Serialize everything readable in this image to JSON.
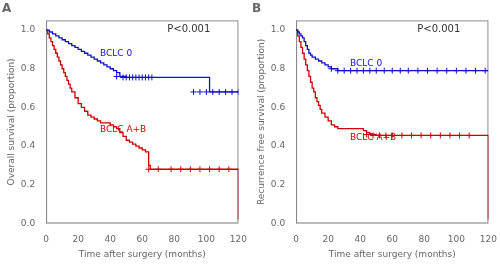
{
  "chart_data": [
    {
      "type": "line",
      "title": "A",
      "xlabel": "Time after surgery (months)",
      "ylabel": "Overall survival (proportion)",
      "annotations": [
        {
          "text": "P<0.001"
        }
      ],
      "xlim": [
        0,
        120
      ],
      "ylim": [
        0,
        1.05
      ],
      "xticks": [
        0,
        20,
        40,
        60,
        80,
        100,
        120
      ],
      "yticks": [
        {
          "value": 0.0,
          "label": "0.0"
        },
        0.2,
        0.4,
        0.6,
        0.8,
        {
          "value": 1.0,
          "label": "1.0"
        }
      ],
      "grid": false,
      "line_style": "step",
      "series": [
        {
          "name": "BCLC 0",
          "color": "#1010CC",
          "marker": "+",
          "x": [
            0,
            2,
            4,
            6,
            8,
            10,
            12,
            14,
            16,
            18,
            20,
            22,
            24,
            26,
            28,
            30,
            32,
            34,
            36,
            38,
            40,
            42,
            44,
            46,
            48,
            50,
            52,
            54,
            56,
            58,
            60,
            62,
            64,
            66,
            68,
            70,
            72,
            74,
            76,
            78,
            80,
            82,
            84,
            86,
            88,
            90,
            92,
            94,
            96,
            98,
            100,
            102,
            104,
            106,
            108,
            110,
            112,
            114,
            116,
            118,
            120
          ],
          "values": [
            1.0,
            0.99,
            0.98,
            0.97,
            0.96,
            0.95,
            0.94,
            0.93,
            0.92,
            0.91,
            0.9,
            0.89,
            0.88,
            0.87,
            0.86,
            0.85,
            0.84,
            0.83,
            0.82,
            0.81,
            0.8,
            0.79,
            0.78,
            0.76,
            0.76,
            0.755,
            0.755,
            0.755,
            0.755,
            0.755,
            0.755,
            0.755,
            0.755,
            0.755,
            0.755,
            0.755,
            0.755,
            0.755,
            0.755,
            0.755,
            0.755,
            0.755,
            0.755,
            0.755,
            0.755,
            0.755,
            0.755,
            0.755,
            0.755,
            0.755,
            0.755,
            0.68,
            0.68,
            0.68,
            0.68,
            0.68,
            0.68,
            0.68,
            0.68,
            0.68,
            0.68
          ],
          "censor_x": [
            44,
            48,
            50,
            52,
            54,
            56,
            58,
            60,
            62,
            64,
            66,
            92,
            96,
            100,
            104,
            108,
            112,
            116,
            120
          ],
          "censor_y": [
            0.76,
            0.755,
            0.755,
            0.755,
            0.755,
            0.755,
            0.755,
            0.755,
            0.755,
            0.755,
            0.755,
            0.68,
            0.68,
            0.68,
            0.68,
            0.68,
            0.68,
            0.68,
            0.68
          ]
        },
        {
          "name": "BCLC A+B",
          "color": "#CC0000",
          "marker": "+",
          "x": [
            0,
            1,
            2,
            3,
            4,
            5,
            6,
            7,
            8,
            9,
            10,
            11,
            12,
            13,
            14,
            15,
            16,
            18,
            20,
            22,
            24,
            26,
            28,
            30,
            32,
            34,
            36,
            38,
            40,
            42,
            44,
            46,
            48,
            50,
            52,
            54,
            56,
            58,
            60,
            62,
            64,
            65,
            70,
            75,
            80,
            85,
            90,
            95,
            100,
            105,
            110,
            115,
            118,
            120
          ],
          "values": [
            1.0,
            0.98,
            0.96,
            0.94,
            0.92,
            0.9,
            0.88,
            0.86,
            0.84,
            0.82,
            0.8,
            0.78,
            0.76,
            0.74,
            0.72,
            0.7,
            0.68,
            0.65,
            0.62,
            0.6,
            0.58,
            0.56,
            0.55,
            0.54,
            0.53,
            0.52,
            0.52,
            0.52,
            0.51,
            0.5,
            0.49,
            0.47,
            0.45,
            0.43,
            0.42,
            0.41,
            0.4,
            0.39,
            0.38,
            0.37,
            0.3,
            0.28,
            0.28,
            0.28,
            0.28,
            0.28,
            0.28,
            0.28,
            0.28,
            0.28,
            0.28,
            0.28,
            0.28,
            0.02
          ],
          "censor_x": [
            64,
            70,
            78,
            84,
            90,
            96,
            102,
            108,
            114
          ],
          "censor_y": [
            0.28,
            0.28,
            0.28,
            0.28,
            0.28,
            0.28,
            0.28,
            0.28,
            0.28
          ]
        }
      ]
    },
    {
      "type": "line",
      "title": "B",
      "xlabel": "Time after surgery (months)",
      "ylabel": "Recurrence free survival (proportion)",
      "annotations": [
        {
          "text": "P<0.001"
        }
      ],
      "xlim": [
        0,
        120
      ],
      "ylim": [
        0,
        1.05
      ],
      "xticks": [
        0,
        20,
        40,
        60,
        80,
        100,
        120
      ],
      "yticks": [
        {
          "value": 0.0,
          "label": "0.0"
        },
        0.2,
        0.4,
        0.6,
        0.8,
        {
          "value": 1.0,
          "label": "1.0"
        }
      ],
      "grid": false,
      "line_style": "step",
      "series": [
        {
          "name": "BCLC 0",
          "color": "#1010CC",
          "marker": "+",
          "x": [
            0,
            1,
            2,
            3,
            4,
            5,
            6,
            7,
            8,
            9,
            10,
            12,
            14,
            16,
            18,
            20,
            22,
            24,
            26,
            28,
            30,
            32,
            34,
            36,
            38,
            40,
            42,
            44,
            46,
            50,
            55,
            60,
            65,
            70,
            75,
            80,
            85,
            90,
            95,
            100,
            105,
            110,
            115,
            120
          ],
          "values": [
            1.0,
            0.99,
            0.98,
            0.97,
            0.96,
            0.94,
            0.92,
            0.9,
            0.88,
            0.87,
            0.86,
            0.85,
            0.84,
            0.83,
            0.82,
            0.81,
            0.8,
            0.8,
            0.79,
            0.79,
            0.79,
            0.79,
            0.79,
            0.79,
            0.79,
            0.79,
            0.79,
            0.79,
            0.79,
            0.79,
            0.79,
            0.79,
            0.79,
            0.79,
            0.79,
            0.79,
            0.79,
            0.79,
            0.79,
            0.79,
            0.79,
            0.79,
            0.79,
            0.79
          ],
          "censor_x": [
            22,
            26,
            30,
            34,
            38,
            42,
            46,
            50,
            55,
            60,
            65,
            70,
            76,
            82,
            88,
            94,
            100,
            106,
            112,
            118
          ],
          "censor_y": [
            0.8,
            0.79,
            0.79,
            0.79,
            0.79,
            0.79,
            0.79,
            0.79,
            0.79,
            0.79,
            0.79,
            0.79,
            0.79,
            0.79,
            0.79,
            0.79,
            0.79,
            0.79,
            0.79,
            0.79
          ]
        },
        {
          "name": "BCLC A+B",
          "color": "#CC0000",
          "marker": "+",
          "x": [
            0,
            1,
            2,
            3,
            4,
            5,
            6,
            7,
            8,
            9,
            10,
            11,
            12,
            13,
            14,
            15,
            16,
            18,
            20,
            22,
            24,
            26,
            28,
            30,
            32,
            34,
            36,
            38,
            40,
            42,
            44,
            46,
            50,
            55,
            60,
            65,
            70,
            75,
            80,
            85,
            90,
            95,
            100,
            105,
            110,
            113,
            116,
            120
          ],
          "values": [
            1.0,
            0.97,
            0.94,
            0.91,
            0.88,
            0.85,
            0.82,
            0.79,
            0.76,
            0.73,
            0.7,
            0.68,
            0.65,
            0.63,
            0.61,
            0.59,
            0.57,
            0.55,
            0.53,
            0.51,
            0.5,
            0.49,
            0.49,
            0.49,
            0.49,
            0.49,
            0.49,
            0.49,
            0.49,
            0.48,
            0.47,
            0.46,
            0.455,
            0.455,
            0.455,
            0.455,
            0.455,
            0.455,
            0.455,
            0.455,
            0.455,
            0.455,
            0.455,
            0.455,
            0.455,
            0.455,
            0.455,
            0.02
          ],
          "censor_x": [
            44,
            48,
            52,
            56,
            60,
            66,
            72,
            78,
            84,
            90,
            96,
            102,
            108
          ],
          "censor_y": [
            0.46,
            0.455,
            0.455,
            0.455,
            0.455,
            0.455,
            0.455,
            0.455,
            0.455,
            0.455,
            0.455,
            0.455,
            0.455
          ]
        }
      ]
    }
  ]
}
